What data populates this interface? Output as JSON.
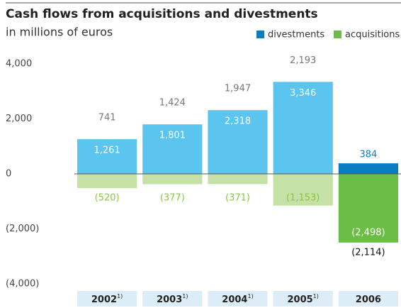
{
  "chart_data": {
    "type": "bar",
    "title": "Cash flows from acquisitions and divestments",
    "subtitle": "in millions of euros",
    "categories": [
      "2002",
      "2003",
      "2004",
      "2005",
      "2006"
    ],
    "category_notes": [
      "1)",
      "1)",
      "1)",
      "1)",
      null
    ],
    "series": [
      {
        "name": "divestments",
        "color": "#0a7cc1",
        "colors": [
          "#5bc5f0",
          "#5bc5f0",
          "#5bc5f0",
          "#5bc5f0",
          "#0a7cc1"
        ],
        "values": [
          1261,
          1801,
          2318,
          3346,
          384
        ],
        "value_labels": [
          "1,261",
          "1,801",
          "2,318",
          "3,346",
          "384"
        ]
      },
      {
        "name": "acquisitions",
        "color": "#6cbd45",
        "colors": [
          "#c6e1a6",
          "#c6e1a6",
          "#c6e1a6",
          "#c6e1a6",
          "#6cbd45"
        ],
        "values": [
          -520,
          -377,
          -371,
          -1153,
          -2498
        ],
        "value_labels": [
          "(520)",
          "(377)",
          "(371)",
          "(1,153)",
          "(2,498)"
        ]
      }
    ],
    "net": {
      "values": [
        741,
        1424,
        1947,
        2193,
        -2114
      ],
      "value_labels": [
        "741",
        "1,424",
        "1,947",
        "2,193",
        "(2,114)"
      ]
    },
    "ylim": [
      -4000,
      4000
    ],
    "yticks": [
      {
        "value": 4000,
        "label": "4,000"
      },
      {
        "value": 2000,
        "label": "2,000"
      },
      0,
      {
        "value": -2000,
        "label": "(2,000)"
      },
      {
        "value": -4000,
        "label": "(4,000)"
      }
    ],
    "legend": "top-right"
  }
}
